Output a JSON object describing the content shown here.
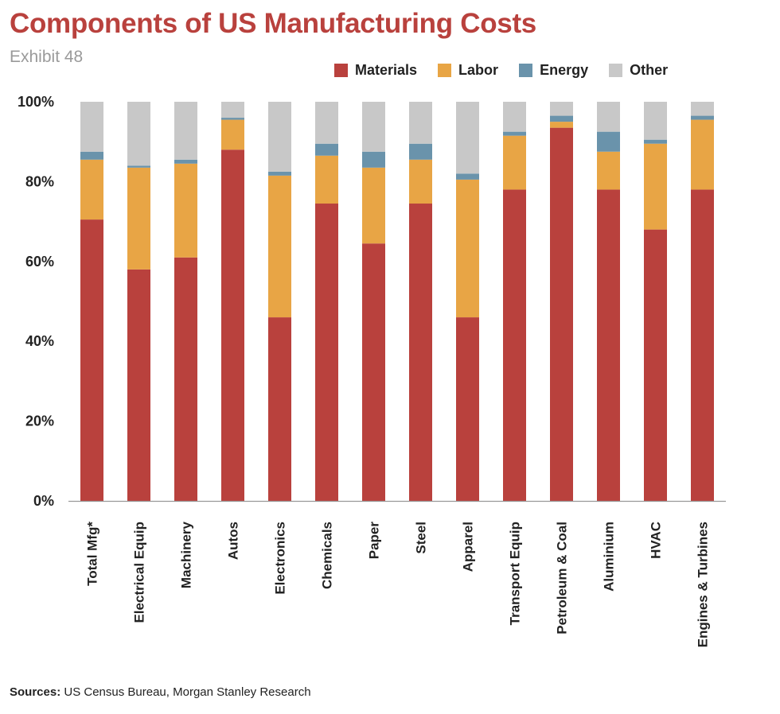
{
  "header": {
    "title": "Components of US Manufacturing Costs",
    "subtitle": "Exhibit 48"
  },
  "footer": {
    "source_label": "Sources:",
    "source_text": "US Census Bureau, Morgan Stanley Research"
  },
  "chart_data": {
    "type": "bar",
    "stacked": true,
    "title": "Components of US Manufacturing Costs",
    "subtitle": "Exhibit 48",
    "categories": [
      "Total Mfg*",
      "Electrical Equip",
      "Machinery",
      "Autos",
      "Electronics",
      "Chemicals",
      "Paper",
      "Steel",
      "Apparel",
      "Transport Equip",
      "Petroleum & Coal",
      "Aluminium",
      "HVAC",
      "Engines & Turbines"
    ],
    "series": [
      {
        "name": "Materials",
        "color": "#b9413d",
        "values": [
          70.5,
          58.0,
          61.0,
          88.0,
          46.0,
          74.5,
          64.5,
          74.5,
          46.0,
          78.0,
          93.5,
          78.0,
          68.0,
          78.0
        ]
      },
      {
        "name": "Labor",
        "color": "#e8a545",
        "values": [
          15.0,
          25.5,
          23.5,
          7.5,
          35.5,
          12.0,
          19.0,
          11.0,
          34.5,
          13.5,
          1.5,
          9.5,
          21.5,
          17.5
        ]
      },
      {
        "name": "Energy",
        "color": "#6a93ab",
        "values": [
          2.0,
          0.5,
          1.0,
          0.5,
          1.0,
          3.0,
          4.0,
          4.0,
          1.5,
          1.0,
          1.5,
          5.0,
          1.0,
          1.0
        ]
      },
      {
        "name": "Other",
        "color": "#c8c8c8",
        "values": [
          12.5,
          16.0,
          14.5,
          4.0,
          17.5,
          10.5,
          12.5,
          10.5,
          18.0,
          7.5,
          3.5,
          7.5,
          9.5,
          3.5
        ]
      }
    ],
    "y_ticks": [
      "0%",
      "20%",
      "40%",
      "60%",
      "80%",
      "100%"
    ],
    "ylim": [
      0,
      100
    ],
    "grid": false,
    "legend_position": "top-right"
  }
}
